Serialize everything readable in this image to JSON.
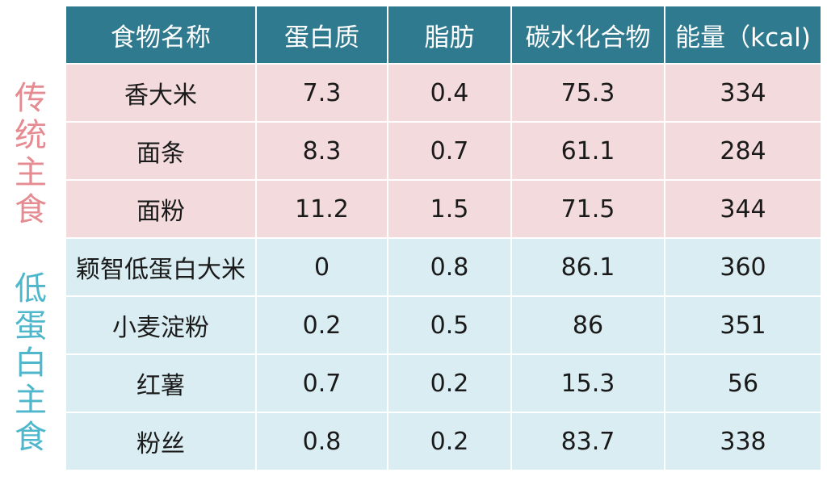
{
  "side_labels": {
    "traditional": [
      "传",
      "统",
      "主",
      "食"
    ],
    "low_protein": [
      "低",
      "蛋",
      "白",
      "主",
      "食"
    ]
  },
  "table": {
    "headers": [
      "食物名称",
      "蛋白质",
      "脂肪",
      "碳水化合物",
      "能量（kcal)"
    ],
    "rows": [
      [
        "香大米",
        "7.3",
        "0.4",
        "75.3",
        "334"
      ],
      [
        "面条",
        "8.3",
        "0.7",
        "61.1",
        "284"
      ],
      [
        "面粉",
        "11.2",
        "1.5",
        "71.5",
        "344"
      ],
      [
        "颖智低蛋白大米",
        "0",
        "0.8",
        "86.1",
        "360"
      ],
      [
        "小麦淀粉",
        "0.2",
        "0.5",
        "86",
        "351"
      ],
      [
        "红薯",
        "0.7",
        "0.2",
        "15.3",
        "56"
      ],
      [
        "粉丝",
        "0.8",
        "0.2",
        "83.7",
        "338"
      ]
    ]
  },
  "colors": {
    "header_bg": "#2f7a8e",
    "traditional_row_bg": "#f3dbdd",
    "low_protein_row_bg": "#d9edf2",
    "traditional_label": "#e58b92",
    "low_protein_label": "#4fb7cb"
  }
}
